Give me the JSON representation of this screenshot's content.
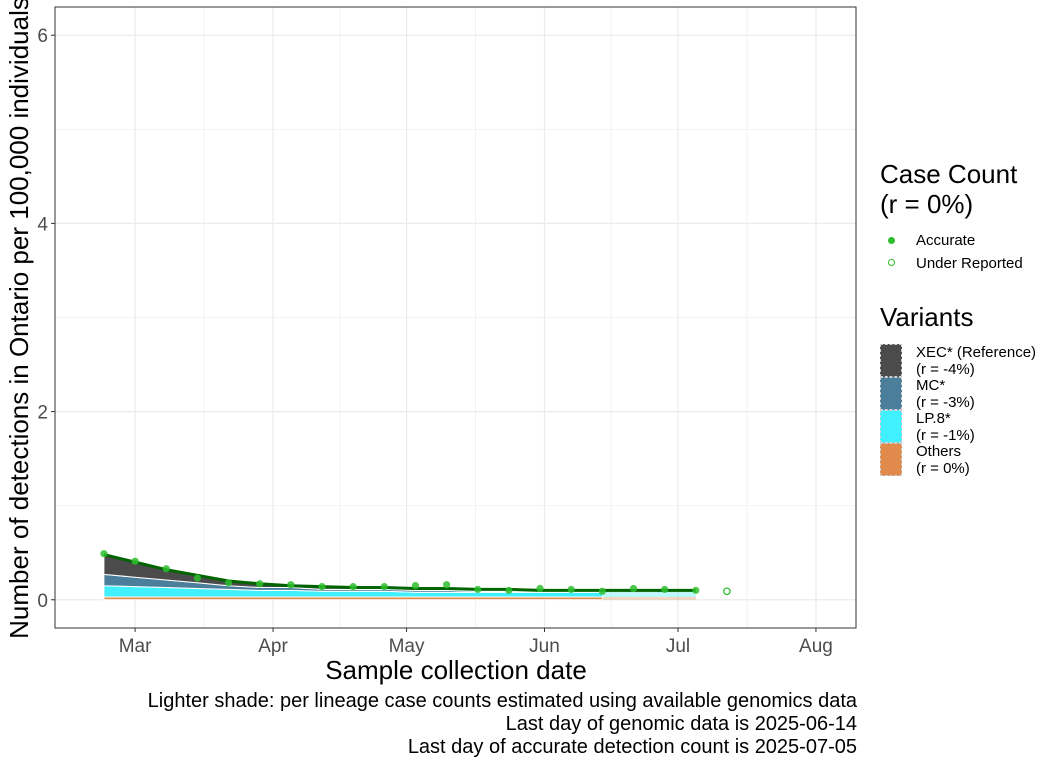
{
  "chart_data": {
    "type": "area",
    "xlabel": "Sample collection date",
    "ylabel": "Number of detections in Ontario per 100,000 individuals",
    "x_ticks": [
      "Mar",
      "Apr",
      "May",
      "Jun",
      "Jul",
      "Aug"
    ],
    "x_tick_dates": [
      "2025-03-01",
      "2025-04-01",
      "2025-05-01",
      "2025-06-01",
      "2025-07-01",
      "2025-08-01"
    ],
    "xlim": [
      "2025-02-11",
      "2025-08-10"
    ],
    "y_ticks": [
      0,
      2,
      4,
      6
    ],
    "ylim": [
      -0.3,
      6.3
    ],
    "grid": true,
    "legend_position": "right",
    "stack_dates": [
      "2025-02-22",
      "2025-03-01",
      "2025-03-08",
      "2025-03-15",
      "2025-03-22",
      "2025-03-29",
      "2025-04-05",
      "2025-04-12",
      "2025-04-19",
      "2025-04-26",
      "2025-05-03",
      "2025-05-10",
      "2025-05-17",
      "2025-05-24",
      "2025-05-31",
      "2025-06-07",
      "2025-06-14",
      "2025-06-21",
      "2025-06-28",
      "2025-07-05"
    ],
    "genomic_last_index": 16,
    "series": [
      {
        "name": "Others",
        "color": "#E08B4C",
        "values": [
          0.03,
          0.03,
          0.03,
          0.03,
          0.03,
          0.03,
          0.03,
          0.03,
          0.03,
          0.03,
          0.03,
          0.03,
          0.03,
          0.03,
          0.03,
          0.03,
          0.03,
          0.03,
          0.03,
          0.03
        ]
      },
      {
        "name": "LP.8*",
        "color": "#40F0FF",
        "values": [
          0.12,
          0.11,
          0.1,
          0.09,
          0.08,
          0.07,
          0.07,
          0.06,
          0.06,
          0.06,
          0.05,
          0.05,
          0.05,
          0.05,
          0.05,
          0.05,
          0.05,
          0.05,
          0.05,
          0.05
        ]
      },
      {
        "name": "MC*",
        "color": "#4A7E9A",
        "values": [
          0.12,
          0.1,
          0.08,
          0.06,
          0.04,
          0.03,
          0.03,
          0.02,
          0.02,
          0.02,
          0.02,
          0.02,
          0.01,
          0.01,
          0.01,
          0.01,
          0.01,
          0.01,
          0.01,
          0.01
        ]
      },
      {
        "name": "XEC* (Reference)",
        "color": "#4B4B4B",
        "values": [
          0.21,
          0.16,
          0.11,
          0.08,
          0.05,
          0.04,
          0.03,
          0.02,
          0.02,
          0.02,
          0.02,
          0.01,
          0.01,
          0.01,
          0.01,
          0.01,
          0.01,
          0.01,
          0.01,
          0.01
        ]
      }
    ],
    "fit_line": {
      "name": "Case Count",
      "color": "#006400",
      "values": [
        0.48,
        0.4,
        0.32,
        0.26,
        0.2,
        0.17,
        0.15,
        0.14,
        0.13,
        0.13,
        0.12,
        0.12,
        0.11,
        0.11,
        0.1,
        0.1,
        0.1,
        0.1,
        0.1,
        0.1
      ]
    },
    "points_accurate": [
      {
        "x": "2025-02-22",
        "y": 0.49
      },
      {
        "x": "2025-03-01",
        "y": 0.41
      },
      {
        "x": "2025-03-08",
        "y": 0.33
      },
      {
        "x": "2025-03-15",
        "y": 0.23
      },
      {
        "x": "2025-03-22",
        "y": 0.18
      },
      {
        "x": "2025-03-29",
        "y": 0.17
      },
      {
        "x": "2025-04-05",
        "y": 0.16
      },
      {
        "x": "2025-04-12",
        "y": 0.14
      },
      {
        "x": "2025-04-19",
        "y": 0.14
      },
      {
        "x": "2025-04-26",
        "y": 0.14
      },
      {
        "x": "2025-05-03",
        "y": 0.15
      },
      {
        "x": "2025-05-10",
        "y": 0.16
      },
      {
        "x": "2025-05-17",
        "y": 0.11
      },
      {
        "x": "2025-05-24",
        "y": 0.1
      },
      {
        "x": "2025-05-31",
        "y": 0.12
      },
      {
        "x": "2025-06-07",
        "y": 0.11
      },
      {
        "x": "2025-06-14",
        "y": 0.09
      },
      {
        "x": "2025-06-21",
        "y": 0.12
      },
      {
        "x": "2025-06-28",
        "y": 0.11
      },
      {
        "x": "2025-07-05",
        "y": 0.1
      }
    ],
    "points_under_reported": [
      {
        "x": "2025-07-12",
        "y": 0.09
      }
    ]
  },
  "legend": {
    "case_count": {
      "title_line1": "Case Count",
      "title_line2": "(r = 0%)",
      "items": [
        {
          "label": "Accurate",
          "color": "#2DBE2D"
        },
        {
          "label": "Under Reported",
          "color": "#2DBE2D"
        }
      ]
    },
    "variants": {
      "title": "Variants",
      "items": [
        {
          "label": "XEC* (Reference)",
          "sub": "(r = -4%)",
          "color": "#4B4B4B"
        },
        {
          "label": "MC*",
          "sub": "(r = -3%)",
          "color": "#4A7E9A"
        },
        {
          "label": "LP.8*",
          "sub": "(r = -1%)",
          "color": "#40F0FF"
        },
        {
          "label": "Others",
          "sub": "(r = 0%)",
          "color": "#E08B4C"
        }
      ]
    }
  },
  "captions": {
    "line1": "Lighter shade: per lineage case counts estimated using available genomics data",
    "line2": "Last day of genomic data is 2025-06-14",
    "line3": "Last day of accurate detection count is 2025-07-05"
  }
}
